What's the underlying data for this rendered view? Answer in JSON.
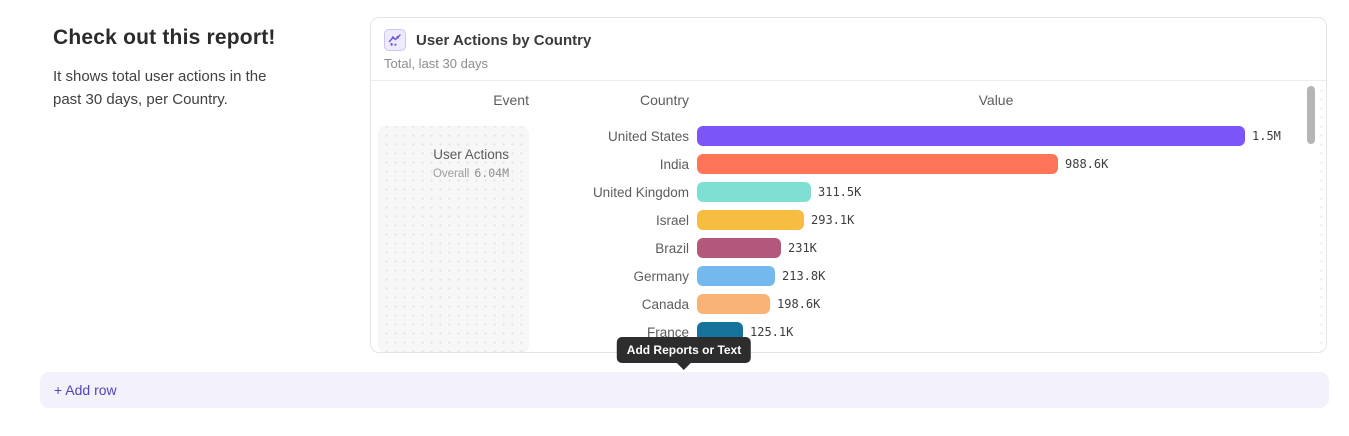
{
  "intro": {
    "title": "Check out this report!",
    "description": "It shows total user actions in the past 30 days, per Country."
  },
  "report_card": {
    "icon": "insights-chart-icon",
    "title": "User Actions by Country",
    "subtitle": "Total, last 30 days",
    "columns": {
      "event": "Event",
      "country": "Country",
      "value": "Value"
    },
    "event_cell": {
      "name": "User Actions",
      "breakdown_label": "Overall",
      "total": "6.04M"
    }
  },
  "chart_data": {
    "type": "bar",
    "orientation": "horizontal",
    "title": "User Actions by Country",
    "subtitle": "Total, last 30 days",
    "series_name": "User Actions",
    "series_total": "6.04M",
    "categories": [
      "United States",
      "India",
      "United Kingdom",
      "Israel",
      "Brazil",
      "Germany",
      "Canada",
      "France"
    ],
    "values": [
      1500000,
      988600,
      311500,
      293100,
      231000,
      213800,
      198600,
      125100
    ],
    "value_labels": [
      "1.5M",
      "988.6K",
      "311.5K",
      "293.1K",
      "231K",
      "213.8K",
      "198.6K",
      "125.1K"
    ],
    "bar_colors": [
      "#7b55f7",
      "#ff7557",
      "#7ee0d2",
      "#f6bd42",
      "#b2587a",
      "#74b9ee",
      "#fab377",
      "#16739c"
    ],
    "xlim": [
      0,
      1500000
    ],
    "grid": false,
    "legend": false
  },
  "tooltip": {
    "label": "Add Reports or Text"
  },
  "footer": {
    "add_row_label": "+ Add row"
  }
}
